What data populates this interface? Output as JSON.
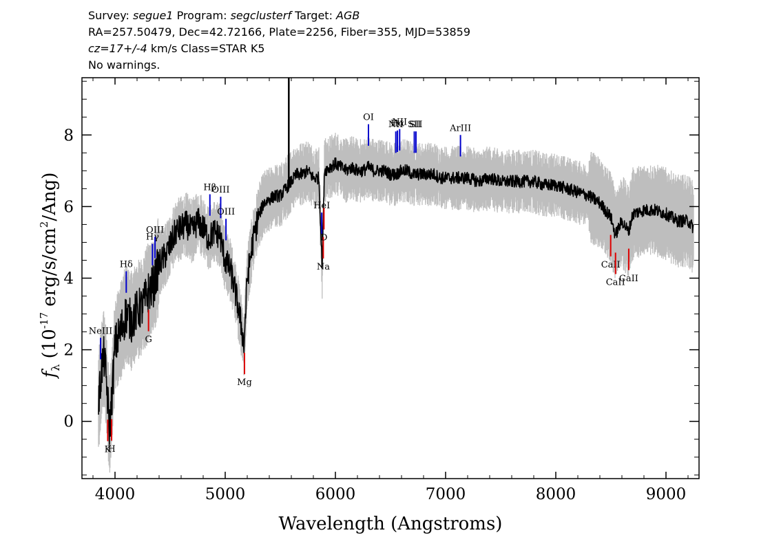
{
  "header": {
    "line1": {
      "survey_label": "Survey:",
      "survey": "segue1",
      "program_label": "Program:",
      "program": "segclusterf",
      "target_label": "Target:",
      "target": "AGB"
    },
    "line2": "RA=257.50479, Dec=42.72166, Plate=2256, Fiber=355, MJD=53859",
    "line3": {
      "cz": "cz=17+/-4",
      "rest": "km/s Class=STAR K5"
    },
    "line4": "No warnings."
  },
  "chart_data": {
    "type": "line",
    "xlabel": "Wavelength (Angstroms)",
    "ylabel_parts": {
      "f": "f",
      "sub": "λ",
      "open": "(10",
      "exp": "-17",
      "mid": "erg/s/cm",
      "exp2": "2",
      "close": "/Ang)"
    },
    "xlim": [
      3700,
      9300
    ],
    "ylim": [
      -1.6,
      9.6
    ],
    "x_ticks": [
      4000,
      5000,
      6000,
      7000,
      8000,
      9000
    ],
    "x_tick_labels": [
      "4000",
      "5000",
      "6000",
      "7000",
      "8000",
      "9000"
    ],
    "y_ticks": [
      0,
      2,
      4,
      6,
      8
    ],
    "y_tick_labels": [
      "0",
      "2",
      "4",
      "6",
      "8"
    ],
    "colors": {
      "flux": "#000000",
      "error_band": "#bebebe",
      "emission": "#0000cc",
      "absorption": "#dd0000"
    },
    "series": [
      {
        "style": "black",
        "x": [
          3850,
          3880,
          3900,
          3920,
          3950,
          3970,
          4000,
          4050,
          4100,
          4150,
          4200,
          4250,
          4300,
          4350,
          4400,
          4450,
          4500,
          4550,
          4600,
          4650,
          4700,
          4750,
          4800,
          4850,
          4900,
          4950,
          5000,
          5050,
          5100,
          5150,
          5170,
          5200,
          5250,
          5300,
          5350,
          5400,
          5450,
          5500,
          5550,
          5600,
          5650,
          5700,
          5750,
          5800,
          5850,
          5880,
          5900,
          5950,
          6000,
          6050,
          6100,
          6150,
          6200,
          6250,
          6300,
          6350,
          6400,
          6450,
          6500,
          6550,
          6600,
          6650,
          6700,
          6750,
          6800,
          6850,
          6900,
          6950,
          7000,
          7100,
          7200,
          7300,
          7400,
          7500,
          7600,
          7700,
          7800,
          7900,
          8000,
          8100,
          8200,
          8300,
          8400,
          8500,
          8540,
          8600,
          8660,
          8700,
          8800,
          8900,
          9000,
          9100,
          9200,
          9250
        ],
        "y": [
          0.5,
          1.5,
          1.8,
          1.2,
          -0.2,
          0.6,
          2.1,
          2.5,
          3.0,
          2.8,
          3.1,
          3.2,
          3.6,
          3.8,
          4.4,
          4.6,
          4.9,
          5.3,
          5.4,
          5.5,
          5.3,
          5.6,
          5.4,
          5.1,
          5.3,
          5.2,
          4.5,
          4.2,
          3.5,
          2.6,
          2.1,
          4.0,
          5.0,
          5.7,
          6.1,
          6.2,
          6.3,
          6.3,
          6.5,
          6.7,
          6.9,
          6.9,
          7.0,
          6.8,
          6.8,
          4.3,
          7.0,
          7.1,
          7.2,
          7.1,
          7.0,
          7.1,
          7.0,
          7.0,
          7.1,
          7.0,
          7.0,
          7.0,
          6.9,
          6.9,
          7.0,
          7.0,
          6.9,
          6.9,
          6.9,
          6.9,
          6.9,
          6.8,
          6.8,
          6.8,
          6.8,
          6.7,
          6.8,
          6.7,
          6.7,
          6.7,
          6.7,
          6.6,
          6.6,
          6.5,
          6.4,
          6.3,
          6.1,
          5.7,
          5.2,
          5.6,
          5.3,
          5.8,
          5.9,
          5.9,
          5.8,
          5.6,
          5.6,
          5.4
        ]
      }
    ],
    "emission_lines": [
      {
        "label": "NeIII",
        "x": 3869
      },
      {
        "label": "Hδ",
        "x": 4102
      },
      {
        "label": "Hγ",
        "x": 4340
      },
      {
        "label": "OIII",
        "x": 4363
      },
      {
        "label": "Hβ",
        "x": 4861
      },
      {
        "label": "OIII",
        "x": 4959
      },
      {
        "label": "OIII",
        "x": 5007
      },
      {
        "label": "HeI",
        "x": 5876
      },
      {
        "label": "OI",
        "x": 6300
      },
      {
        "label": "NII",
        "x": 6548
      },
      {
        "label": "Hα",
        "x": 6563
      },
      {
        "label": "NII",
        "x": 6583
      },
      {
        "label": "SII",
        "x": 6716
      },
      {
        "label": "SII",
        "x": 6731
      },
      {
        "label": "ArIII",
        "x": 7135
      }
    ],
    "absorption_lines": [
      {
        "label": "K",
        "x": 3934
      },
      {
        "label": "H",
        "x": 3969
      },
      {
        "label": "G",
        "x": 4304
      },
      {
        "label": "Mg",
        "x": 5175
      },
      {
        "label": "Na",
        "x": 5890
      },
      {
        "label": "D",
        "x": 5896
      },
      {
        "label": "CaII",
        "x": 8498
      },
      {
        "label": "CaII",
        "x": 8542
      },
      {
        "label": "CaII",
        "x": 8662
      }
    ]
  }
}
